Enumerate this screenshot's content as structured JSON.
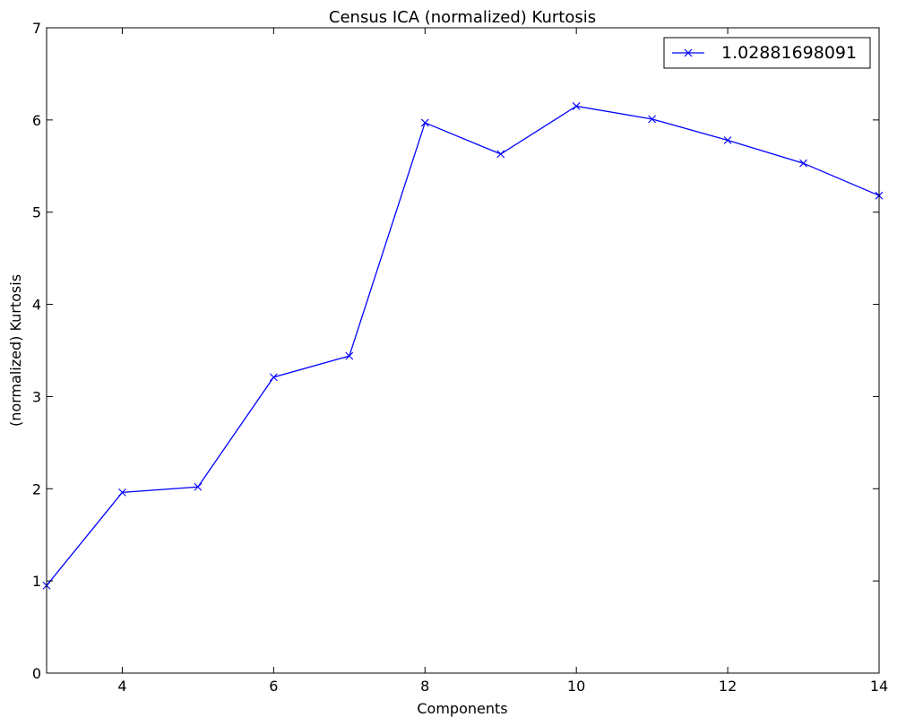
{
  "chart_data": {
    "type": "line",
    "title": "Census ICA (normalized) Kurtosis",
    "xlabel": "Components",
    "ylabel": "(normalized) Kurtosis",
    "xlim": [
      3,
      14
    ],
    "ylim": [
      0,
      7
    ],
    "xticks": [
      4,
      6,
      8,
      10,
      12,
      14
    ],
    "yticks": [
      0,
      1,
      2,
      3,
      4,
      5,
      6,
      7
    ],
    "grid": false,
    "legend_position": "top-right",
    "series": [
      {
        "name": "1.02881698091",
        "color": "#0000ff",
        "marker": "x",
        "x": [
          3,
          4,
          5,
          6,
          7,
          8,
          9,
          10,
          11,
          12,
          13,
          14
        ],
        "y": [
          0.95,
          1.96,
          2.02,
          3.21,
          3.44,
          5.97,
          5.63,
          6.15,
          6.01,
          5.78,
          5.53,
          5.18
        ]
      }
    ]
  }
}
